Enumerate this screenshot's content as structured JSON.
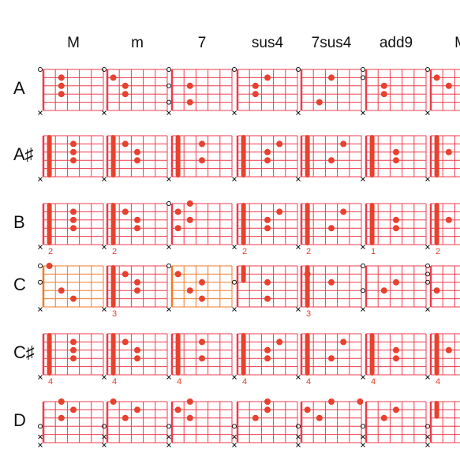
{
  "colors": {
    "grid": "#ee3b4c",
    "grid_alt": "#f07a2a",
    "dot": "#e8412e",
    "text": "#111111"
  },
  "columns": [
    "M",
    "m",
    "7",
    "sus4",
    "7sus4",
    "add9",
    "M"
  ],
  "rows": [
    {
      "label": "A",
      "chords": [
        {
          "open": [
            0,
            5
          ],
          "mute": [
            5
          ],
          "barre": null,
          "dots": [
            [
              2,
              1
            ],
            [
              2,
              2
            ],
            [
              2,
              3
            ]
          ]
        },
        {
          "open": [
            0,
            5
          ],
          "mute": [
            5
          ],
          "barre": null,
          "dots": [
            [
              1,
              1
            ],
            [
              2,
              2
            ],
            [
              2,
              3
            ]
          ]
        },
        {
          "open": [
            0,
            2,
            4,
            5
          ],
          "mute": [
            5
          ],
          "barre": null,
          "dots": [
            [
              2,
              2
            ],
            [
              2,
              4
            ]
          ]
        },
        {
          "open": [
            0,
            5
          ],
          "mute": [
            5
          ],
          "barre": null,
          "dots": [
            [
              2,
              2
            ],
            [
              2,
              3
            ],
            [
              3,
              1
            ]
          ]
        },
        {
          "open": [
            0,
            5
          ],
          "mute": [
            5
          ],
          "barre": null,
          "dots": [
            [
              2,
              4
            ],
            [
              3,
              1
            ]
          ]
        },
        {
          "open": [
            0,
            1,
            5
          ],
          "mute": [
            5
          ],
          "barre": null,
          "dots": [
            [
              2,
              2
            ],
            [
              2,
              3
            ]
          ]
        },
        {
          "open": [
            0,
            5
          ],
          "mute": [
            5
          ],
          "barre": null,
          "dots": [
            [
              1,
              1
            ],
            [
              2,
              2
            ]
          ]
        }
      ]
    },
    {
      "label": "A♯",
      "chords": [
        {
          "open": [],
          "mute": [
            5
          ],
          "barre": 1,
          "dots": [
            [
              3,
              1
            ],
            [
              3,
              2
            ],
            [
              3,
              3
            ]
          ]
        },
        {
          "open": [],
          "mute": [
            5
          ],
          "barre": 1,
          "dots": [
            [
              2,
              1
            ],
            [
              3,
              2
            ],
            [
              3,
              3
            ]
          ]
        },
        {
          "open": [],
          "mute": [
            5
          ],
          "barre": 1,
          "dots": [
            [
              3,
              1
            ],
            [
              3,
              3
            ]
          ]
        },
        {
          "open": [],
          "mute": [
            5
          ],
          "barre": 1,
          "dots": [
            [
              4,
              1
            ],
            [
              3,
              2
            ],
            [
              3,
              3
            ]
          ]
        },
        {
          "open": [],
          "mute": [
            5
          ],
          "barre": 1,
          "dots": [
            [
              4,
              1
            ],
            [
              3,
              3
            ]
          ]
        },
        {
          "open": [],
          "mute": [
            5
          ],
          "barre": 1,
          "dots": [
            [
              3,
              2
            ],
            [
              3,
              3
            ]
          ]
        },
        {
          "open": [],
          "mute": [
            5
          ],
          "barre": 1,
          "dots": [
            [
              2,
              2
            ]
          ]
        }
      ]
    },
    {
      "label": "B",
      "fret": [
        "2",
        "2",
        "",
        "2",
        "2",
        "1",
        "2"
      ],
      "chords": [
        {
          "open": [],
          "mute": [
            5
          ],
          "barre": 1,
          "dots": [
            [
              3,
              1
            ],
            [
              3,
              2
            ],
            [
              3,
              3
            ]
          ]
        },
        {
          "open": [],
          "mute": [
            5
          ],
          "barre": 1,
          "dots": [
            [
              2,
              1
            ],
            [
              3,
              2
            ],
            [
              3,
              3
            ]
          ]
        },
        {
          "open": [
            0
          ],
          "mute": [
            5
          ],
          "barre": null,
          "dots": [
            [
              2,
              0
            ],
            [
              1,
              1
            ],
            [
              2,
              2
            ],
            [
              1,
              3
            ]
          ]
        },
        {
          "open": [],
          "mute": [
            5
          ],
          "barre": 1,
          "dots": [
            [
              4,
              1
            ],
            [
              3,
              2
            ],
            [
              3,
              3
            ]
          ]
        },
        {
          "open": [],
          "mute": [
            5
          ],
          "barre": 1,
          "dots": [
            [
              4,
              1
            ],
            [
              3,
              3
            ]
          ]
        },
        {
          "open": [],
          "mute": [
            5
          ],
          "barre": 1,
          "dots": [
            [
              3,
              2
            ],
            [
              3,
              3
            ]
          ]
        },
        {
          "open": [],
          "mute": [
            5
          ],
          "barre": 1,
          "dots": [
            [
              2,
              2
            ]
          ]
        }
      ]
    },
    {
      "label": "C",
      "fret": [
        "",
        "3",
        "",
        "",
        "3",
        "",
        ""
      ],
      "chords": [
        {
          "alt": true,
          "open": [
            0,
            2
          ],
          "mute": [
            5
          ],
          "barre": null,
          "dots": [
            [
              1,
              0
            ],
            [
              2,
              3
            ],
            [
              3,
              4
            ]
          ]
        },
        {
          "open": [],
          "mute": [
            5
          ],
          "barre": 1,
          "dots": [
            [
              2,
              1
            ],
            [
              3,
              2
            ],
            [
              3,
              3
            ]
          ]
        },
        {
          "alt": true,
          "open": [
            0
          ],
          "mute": [
            5
          ],
          "barre": null,
          "dots": [
            [
              1,
              1
            ],
            [
              3,
              2
            ],
            [
              2,
              3
            ],
            [
              3,
              4
            ]
          ]
        },
        {
          "open": [
            2
          ],
          "mute": [
            5
          ],
          "barre": null,
          "partial": true,
          "dots": [
            [
              3,
              2
            ],
            [
              3,
              4
            ]
          ]
        },
        {
          "open": [],
          "mute": [
            5
          ],
          "barre": 1,
          "dots": [
            [
              1,
              1
            ],
            [
              3,
              2
            ]
          ]
        },
        {
          "open": [
            0,
            3
          ],
          "mute": [
            5
          ],
          "barre": null,
          "dots": [
            [
              3,
              2
            ],
            [
              2,
              3
            ]
          ]
        },
        {
          "open": [
            0,
            1,
            2
          ],
          "mute": [
            5
          ],
          "barre": null,
          "dots": [
            [
              1,
              3
            ]
          ]
        }
      ]
    },
    {
      "label": "C♯",
      "fret": [
        "4",
        "4",
        "4",
        "4",
        "4",
        "4",
        "4"
      ],
      "chords": [
        {
          "open": [],
          "mute": [
            5
          ],
          "barre": 1,
          "dots": [
            [
              3,
              1
            ],
            [
              3,
              2
            ],
            [
              3,
              3
            ]
          ]
        },
        {
          "open": [],
          "mute": [
            5
          ],
          "barre": 1,
          "dots": [
            [
              2,
              1
            ],
            [
              3,
              2
            ],
            [
              3,
              3
            ]
          ]
        },
        {
          "open": [],
          "mute": [
            5
          ],
          "barre": 1,
          "dots": [
            [
              3,
              1
            ],
            [
              3,
              3
            ]
          ]
        },
        {
          "open": [],
          "mute": [
            5
          ],
          "barre": 1,
          "dots": [
            [
              4,
              1
            ],
            [
              3,
              2
            ],
            [
              3,
              3
            ]
          ]
        },
        {
          "open": [],
          "mute": [
            5
          ],
          "barre": 1,
          "dots": [
            [
              4,
              1
            ],
            [
              3,
              3
            ]
          ]
        },
        {
          "open": [],
          "mute": [
            5
          ],
          "barre": 1,
          "dots": [
            [
              3,
              2
            ],
            [
              3,
              3
            ]
          ]
        },
        {
          "open": [],
          "mute": [
            5
          ],
          "barre": 1,
          "dots": [
            [
              2,
              2
            ]
          ]
        }
      ]
    },
    {
      "label": "D",
      "chords": [
        {
          "open": [
            3
          ],
          "mute": [
            4,
            5
          ],
          "barre": null,
          "dots": [
            [
              2,
              0
            ],
            [
              3,
              1
            ],
            [
              2,
              2
            ]
          ]
        },
        {
          "open": [
            3
          ],
          "mute": [
            4,
            5
          ],
          "barre": null,
          "dots": [
            [
              1,
              0
            ],
            [
              3,
              1
            ],
            [
              2,
              2
            ]
          ]
        },
        {
          "open": [
            3
          ],
          "mute": [
            4,
            5
          ],
          "barre": null,
          "dots": [
            [
              2,
              0
            ],
            [
              1,
              1
            ],
            [
              2,
              2
            ]
          ]
        },
        {
          "open": [
            3
          ],
          "mute": [
            4,
            5
          ],
          "barre": null,
          "dots": [
            [
              3,
              0
            ],
            [
              3,
              1
            ],
            [
              2,
              2
            ]
          ]
        },
        {
          "open": [
            3
          ],
          "mute": [
            4,
            5
          ],
          "barre": null,
          "dots": [
            [
              3,
              0
            ],
            [
              1,
              1
            ],
            [
              2,
              2
            ]
          ]
        },
        {
          "open": [
            3
          ],
          "mute": [
            4,
            5
          ],
          "barre": null,
          "dots": [
            [
              0,
              0
            ],
            [
              3,
              1
            ],
            [
              2,
              2
            ]
          ]
        },
        {
          "open": [
            3
          ],
          "mute": [
            4,
            5
          ],
          "barre": null,
          "partial": true,
          "dots": []
        }
      ]
    }
  ]
}
